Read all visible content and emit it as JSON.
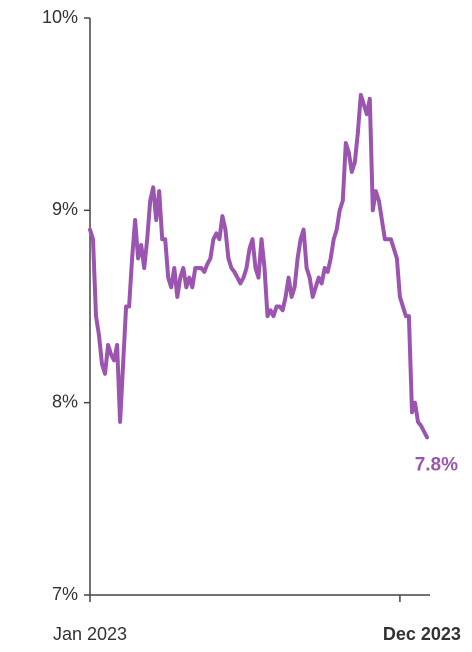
{
  "chart_data": {
    "type": "line",
    "categories": [
      "Jan 2023",
      null,
      null,
      null,
      null,
      null,
      null,
      null,
      null,
      null,
      null,
      null,
      null,
      null,
      null,
      null,
      null,
      null,
      null,
      null,
      null,
      null,
      null,
      null,
      null,
      null,
      null,
      null,
      null,
      null,
      null,
      null,
      null,
      null,
      null,
      null,
      null,
      null,
      null,
      null,
      null,
      null,
      null,
      null,
      null,
      null,
      null,
      null,
      null,
      null,
      null,
      null,
      null,
      null,
      null,
      null,
      null,
      null,
      null,
      null,
      null,
      null,
      null,
      null,
      null,
      null,
      null,
      null,
      null,
      null,
      null,
      null,
      null,
      null,
      null,
      null,
      null,
      null,
      null,
      null,
      null,
      null,
      null,
      null,
      null,
      null,
      null,
      null,
      null,
      null,
      null,
      null,
      null,
      null,
      null,
      null,
      null,
      null,
      null,
      null,
      null,
      null,
      null,
      "Dec 2023",
      null,
      null,
      null,
      null,
      null,
      null,
      null,
      null,
      null
    ],
    "values": [
      8.9,
      8.85,
      8.45,
      8.35,
      8.2,
      8.15,
      8.3,
      8.25,
      8.22,
      8.3,
      7.9,
      8.2,
      8.5,
      8.5,
      8.75,
      8.95,
      8.75,
      8.82,
      8.7,
      8.85,
      9.05,
      9.12,
      8.95,
      9.1,
      8.85,
      8.85,
      8.65,
      8.6,
      8.7,
      8.55,
      8.65,
      8.7,
      8.6,
      8.65,
      8.6,
      8.7,
      8.7,
      8.7,
      8.68,
      8.72,
      8.75,
      8.85,
      8.88,
      8.85,
      8.97,
      8.9,
      8.75,
      8.7,
      8.68,
      8.65,
      8.62,
      8.65,
      8.7,
      8.8,
      8.85,
      8.7,
      8.65,
      8.85,
      8.7,
      8.45,
      8.48,
      8.45,
      8.5,
      8.5,
      8.48,
      8.55,
      8.65,
      8.55,
      8.6,
      8.75,
      8.85,
      8.9,
      8.7,
      8.65,
      8.55,
      8.6,
      8.65,
      8.62,
      8.7,
      8.68,
      8.75,
      8.85,
      8.9,
      9.0,
      9.05,
      9.35,
      9.3,
      9.2,
      9.25,
      9.4,
      9.6,
      9.55,
      9.5,
      9.58,
      9.0,
      9.1,
      9.05,
      8.95,
      8.85,
      8.85,
      8.85,
      8.8,
      8.75,
      8.55,
      8.5,
      8.45,
      8.45,
      7.95,
      8.0,
      7.9,
      7.88,
      7.85,
      7.82
    ],
    "color": "#9b55b0",
    "annotation": "7.8%",
    "ylim": [
      7,
      10
    ],
    "yticks": [
      {
        "value": 7,
        "label": "7%"
      },
      {
        "value": 8,
        "label": "8%"
      },
      {
        "value": 9,
        "label": "9%"
      },
      {
        "value": 10,
        "label": "10%"
      }
    ],
    "grid": false
  }
}
